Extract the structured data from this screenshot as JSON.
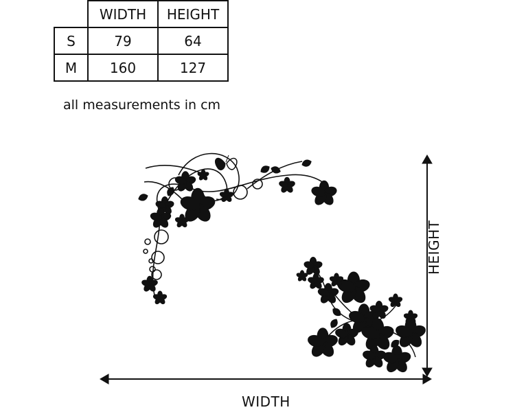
{
  "table": {
    "headers": [
      "WIDTH",
      "HEIGHT"
    ],
    "rows": [
      {
        "size": "S",
        "width": "79",
        "height": "64"
      },
      {
        "size": "M",
        "width": "160",
        "height": "127"
      }
    ]
  },
  "note": "all measurements in cm",
  "dimension_labels": {
    "width": "WIDTH",
    "height": "HEIGHT"
  },
  "colors": {
    "ink": "#111111",
    "background": "#ffffff"
  }
}
